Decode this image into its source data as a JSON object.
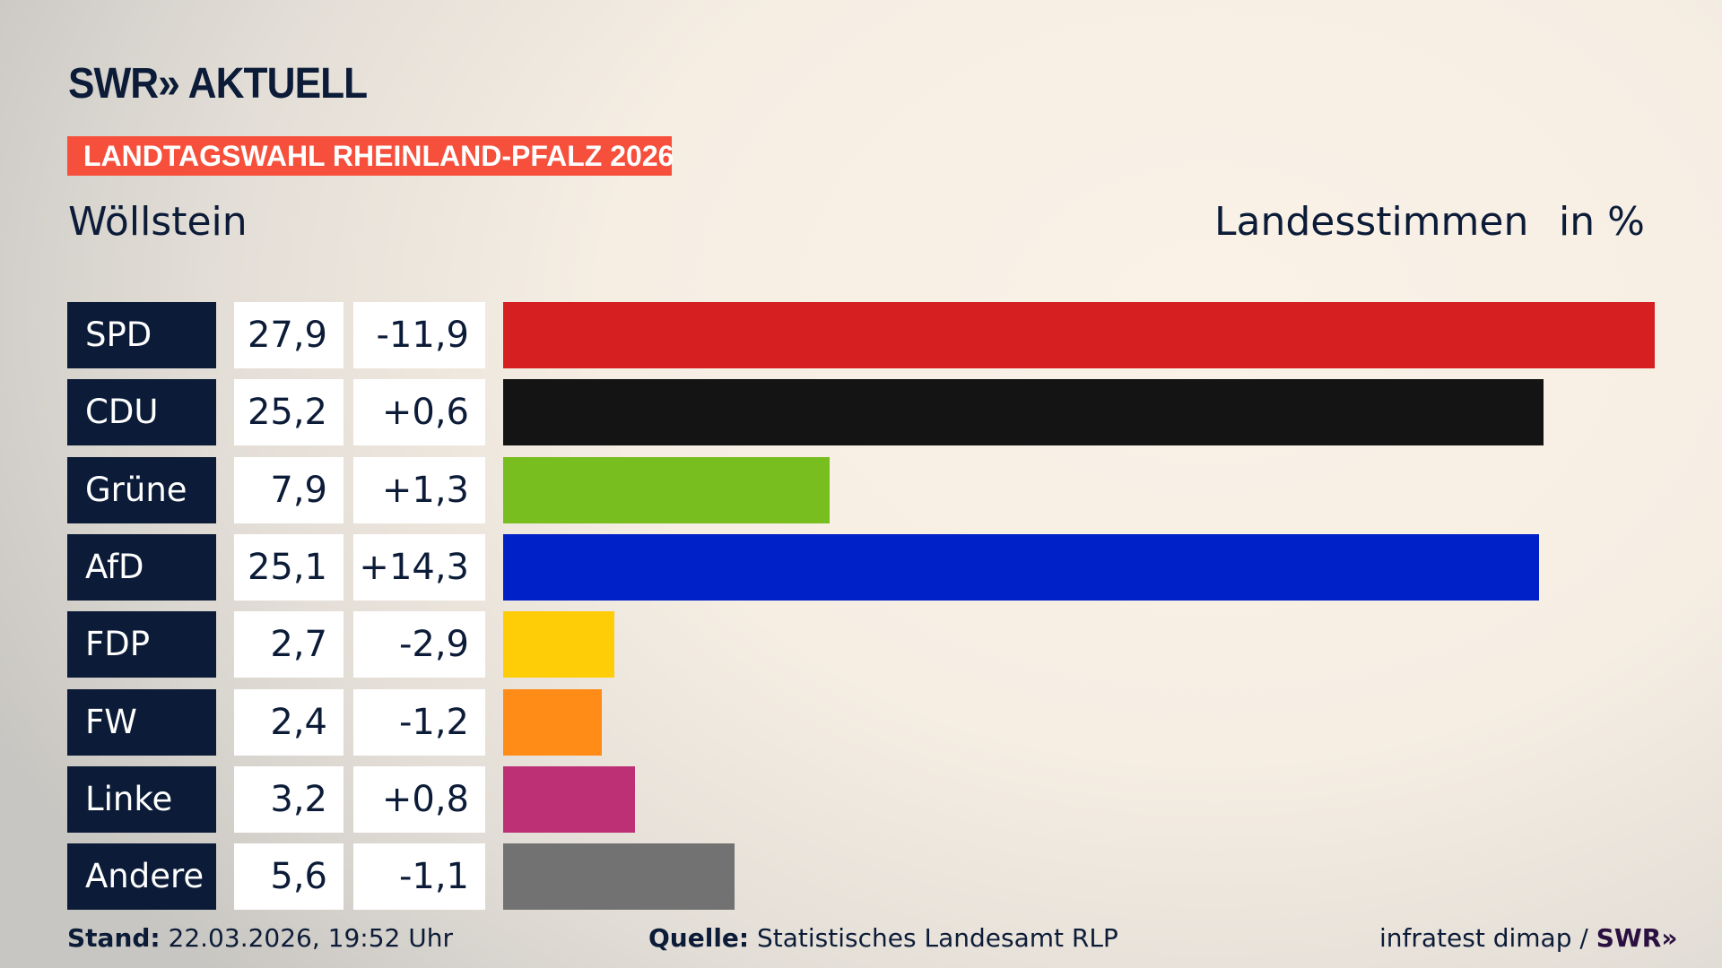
{
  "logo": "SWR» AKTUELL",
  "tag": "LANDTAGSWAHL RHEINLAND-PFALZ 2026",
  "place": "Wöllstein",
  "metric": "Landesstimmen",
  "unit": "in %",
  "chart_data": {
    "type": "bar",
    "orientation": "horizontal",
    "categories": [
      "SPD",
      "CDU",
      "Grüne",
      "AfD",
      "FDP",
      "FW",
      "Linke",
      "Andere"
    ],
    "values": [
      27.9,
      25.2,
      7.9,
      25.1,
      2.7,
      2.4,
      3.2,
      5.6
    ],
    "value_labels": [
      "27,9",
      "25,2",
      "7,9",
      "25,1",
      "2,7",
      "2,4",
      "3,2",
      "5,6"
    ],
    "diff_labels": [
      "-11,9",
      "+0,6",
      "+1,3",
      "+14,3",
      "-2,9",
      "-1,2",
      "+0,8",
      "-1,1"
    ],
    "colors": [
      "#d61f20",
      "#141414",
      "#78be1e",
      "#0021c8",
      "#ffcc08",
      "#ff8c16",
      "#bd3075",
      "#727272"
    ]
  },
  "footer": {
    "stand_label": "Stand:",
    "stand": "22.03.2026, 19:52 Uhr",
    "quelle_label": "Quelle:",
    "quelle": "Statistisches Landesamt RLP",
    "credit": "infratest dimap /",
    "credit_logo": "SWR»"
  }
}
